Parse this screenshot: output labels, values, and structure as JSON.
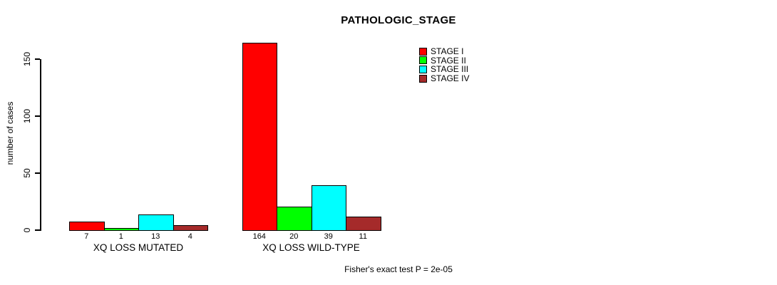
{
  "chart_data": {
    "type": "bar",
    "title": "PATHOLOGIC_STAGE",
    "ylabel": "number of cases",
    "xlabel": "",
    "categories": [
      "XQ LOSS MUTATED",
      "XQ LOSS WILD-TYPE"
    ],
    "series": [
      {
        "name": "STAGE I",
        "color": "#ff0000",
        "values": [
          7,
          164
        ]
      },
      {
        "name": "STAGE II",
        "color": "#00ff00",
        "values": [
          1,
          20
        ]
      },
      {
        "name": "STAGE III",
        "color": "#00ffff",
        "values": [
          13,
          39
        ]
      },
      {
        "name": "STAGE IV",
        "color": "#a52a2a",
        "values": [
          4,
          11
        ]
      }
    ],
    "yticks": [
      0,
      50,
      100,
      150
    ],
    "ylim": [
      0,
      164
    ],
    "grid": false,
    "bar_value_labels_shown": true,
    "legend_position": "top-right",
    "annotation": "Fisher's exact test P = 2e-05"
  }
}
